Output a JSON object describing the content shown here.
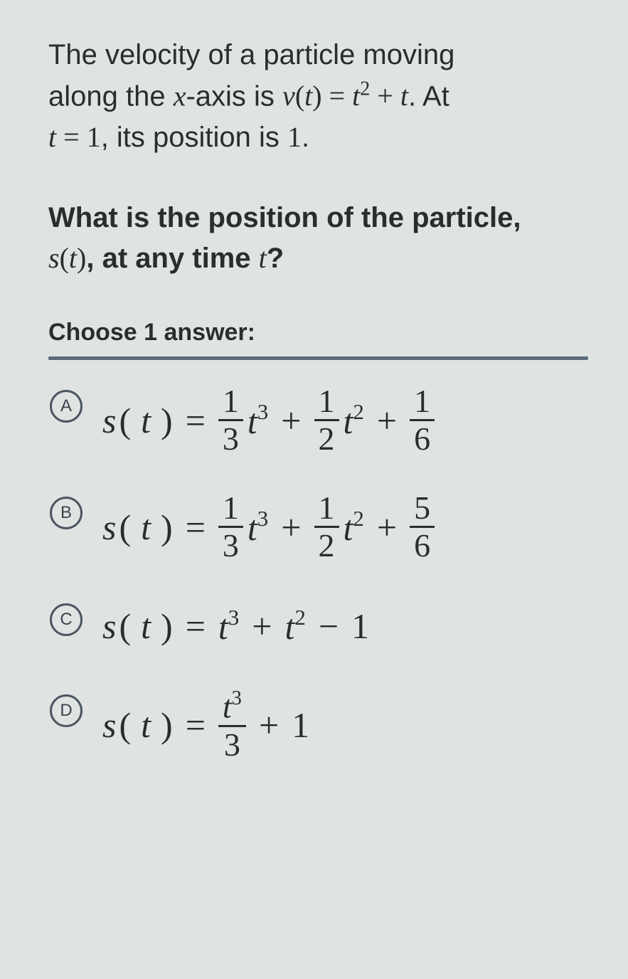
{
  "background_color": "#dfe4e2",
  "text_color": "#2b2d2c",
  "rule_color": "#5c6a7a",
  "letter_border_color": "#4b5560",
  "question": {
    "line1_a": "The velocity of a particle moving",
    "line1_b": "along the ",
    "x": "x",
    "axis_is": "-axis is ",
    "v": "v",
    "lp": "(",
    "t": "t",
    "rp": ")",
    "eq": " = ",
    "t2": "t",
    "exp2": "2",
    "plus": " + ",
    "t_end": "t",
    "period_at": ". At",
    "line3_t": "t",
    "line3_eq": " = ",
    "one": "1",
    "pos_is": ", its position is ",
    "one_b": "1",
    "dot": "."
  },
  "prompt": {
    "a": "What is the position of the particle,",
    "s": "s",
    "lp": "(",
    "t": "t",
    "rp": ")",
    "b": ", at any time ",
    "t2": "t",
    "q": "?"
  },
  "choose_label": "Choose 1 answer:",
  "choices": {
    "A": {
      "letter": "A",
      "s": "s",
      "lp": "(",
      "t": "t",
      "rp": ")",
      "eq": "=",
      "f1n": "1",
      "f1d": "3",
      "t1": "t",
      "e1": "3",
      "plus1": "+",
      "f2n": "1",
      "f2d": "2",
      "t2": "t",
      "e2": "2",
      "plus2": "+",
      "f3n": "1",
      "f3d": "6"
    },
    "B": {
      "letter": "B",
      "s": "s",
      "lp": "(",
      "t": "t",
      "rp": ")",
      "eq": "=",
      "f1n": "1",
      "f1d": "3",
      "t1": "t",
      "e1": "3",
      "plus1": "+",
      "f2n": "1",
      "f2d": "2",
      "t2": "t",
      "e2": "2",
      "plus2": "+",
      "f3n": "5",
      "f3d": "6"
    },
    "C": {
      "letter": "C",
      "s": "s",
      "lp": "(",
      "t": "t",
      "rp": ")",
      "eq": "=",
      "t1": "t",
      "e1": "3",
      "plus1": "+",
      "t2": "t",
      "e2": "2",
      "minus": "−",
      "one": "1"
    },
    "D": {
      "letter": "D",
      "s": "s",
      "lp": "(",
      "t": "t",
      "rp": ")",
      "eq": "=",
      "fn_t": "t",
      "fn_e": "3",
      "fd": "3",
      "plus": "+",
      "one": "1"
    }
  }
}
